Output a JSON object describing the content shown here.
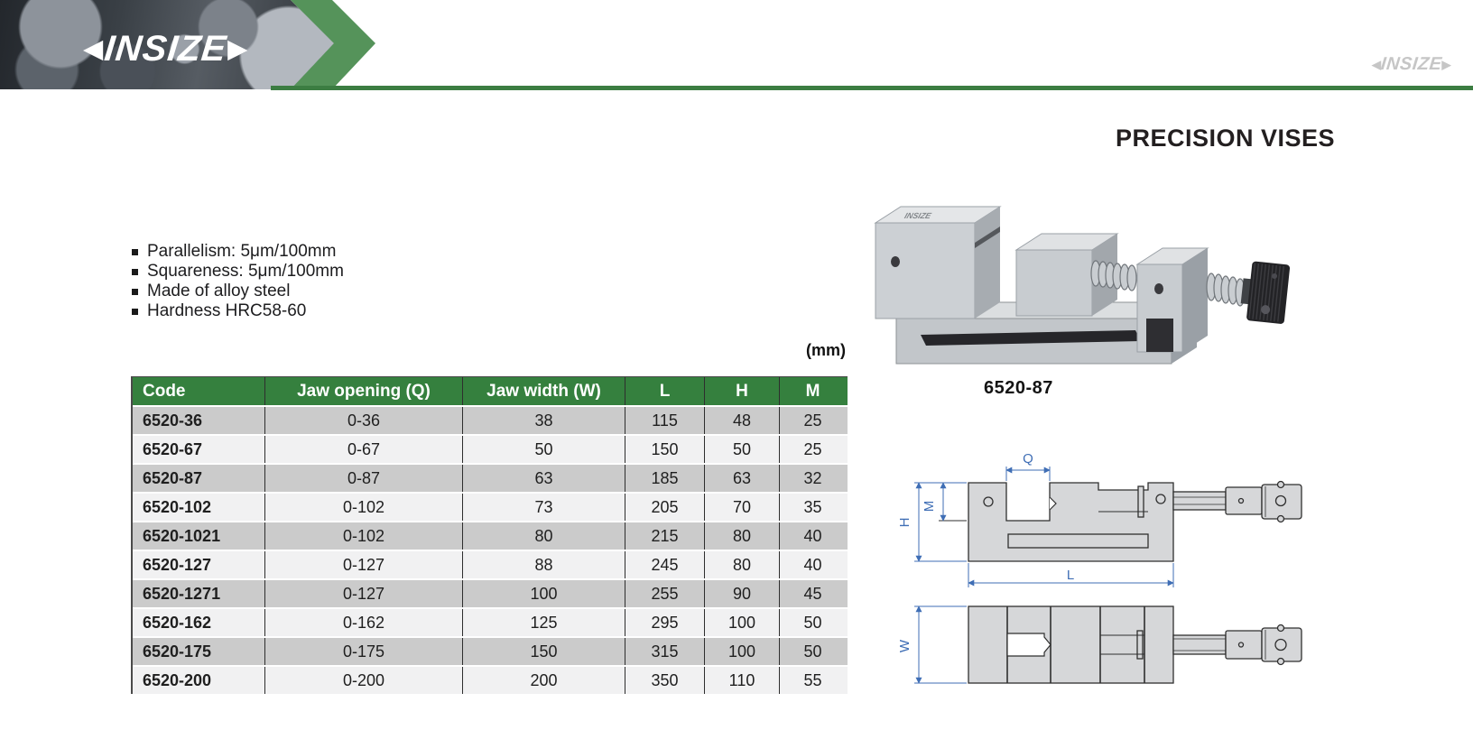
{
  "brand": {
    "logo_text": "INSIZE",
    "left_arrow": "◀",
    "right_arrow": "▶",
    "watermark_text": "INSIZE"
  },
  "page": {
    "title": "PRECISION VISES",
    "unit_label": "(mm)",
    "product_code": "6520-87"
  },
  "features": [
    "Parallelism: 5μm/100mm",
    "Squareness: 5μm/100mm",
    "Made of alloy steel",
    "Hardness HRC58-60"
  ],
  "table": {
    "columns": [
      "Code",
      "Jaw opening (Q)",
      "Jaw width (W)",
      "L",
      "H",
      "M"
    ],
    "rows": [
      [
        "6520-36",
        "0-36",
        "38",
        "115",
        "48",
        "25"
      ],
      [
        "6520-67",
        "0-67",
        "50",
        "150",
        "50",
        "25"
      ],
      [
        "6520-87",
        "0-87",
        "63",
        "185",
        "63",
        "32"
      ],
      [
        "6520-102",
        "0-102",
        "73",
        "205",
        "70",
        "35"
      ],
      [
        "6520-1021",
        "0-102",
        "80",
        "215",
        "80",
        "40"
      ],
      [
        "6520-127",
        "0-127",
        "88",
        "245",
        "80",
        "40"
      ],
      [
        "6520-1271",
        "0-127",
        "100",
        "255",
        "90",
        "45"
      ],
      [
        "6520-162",
        "0-162",
        "125",
        "295",
        "100",
        "50"
      ],
      [
        "6520-175",
        "0-175",
        "150",
        "315",
        "100",
        "50"
      ],
      [
        "6520-200",
        "0-200",
        "200",
        "350",
        "110",
        "55"
      ]
    ]
  },
  "diagram": {
    "q": "Q",
    "m": "M",
    "h": "H",
    "l": "L",
    "w": "W"
  },
  "colors": {
    "chevron_green": "#55935a",
    "rule_green": "#3c7d42",
    "table_header_green": "#35803e",
    "row_dark": "#cbcbcb",
    "row_light": "#f1f1f2",
    "dimension_blue": "#3f6eb5"
  }
}
